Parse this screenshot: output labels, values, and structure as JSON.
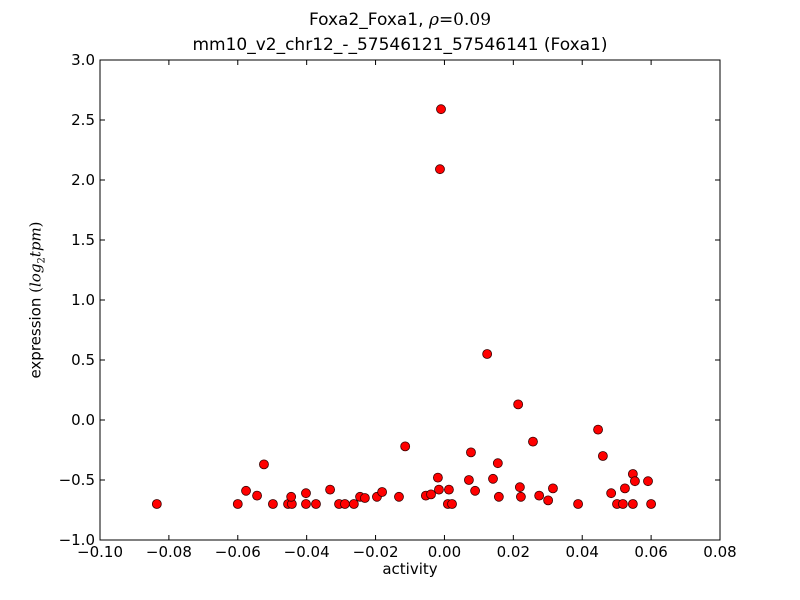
{
  "chart_data": {
    "type": "scatter",
    "title": "Foxa2_Foxa1, ρ = 0.09",
    "title_line1_text": "Foxa2_Foxa1, ",
    "title_rho_symbol": "ρ",
    "title_rho_value": "=0.09",
    "subtitle": "mm10_v2_chr12_-_57546121_57546141 (Foxa1)",
    "xlabel": "activity",
    "ylabel": "expression (log2 tpm)",
    "ylabel_text": "expression ",
    "ylabel_math_open": "(",
    "ylabel_math_log": "log",
    "ylabel_math_sub": "2",
    "ylabel_math_tpm": "tpm",
    "ylabel_math_close": ")",
    "xlim": [
      -0.1,
      0.08
    ],
    "ylim": [
      -1.0,
      3.0
    ],
    "xticks": [
      -0.1,
      -0.08,
      -0.06,
      -0.04,
      -0.02,
      0.0,
      0.02,
      0.04,
      0.06,
      0.08
    ],
    "xtick_labels": [
      "−0.10",
      "−0.08",
      "−0.06",
      "−0.04",
      "−0.02",
      "0.00",
      "0.02",
      "0.04",
      "0.06",
      "0.08"
    ],
    "yticks": [
      -1.0,
      -0.5,
      0.0,
      0.5,
      1.0,
      1.5,
      2.0,
      2.5,
      3.0
    ],
    "ytick_labels": [
      "−1.0",
      "−0.5",
      "0.0",
      "0.5",
      "1.0",
      "1.5",
      "2.0",
      "2.5",
      "3.0"
    ],
    "grid": false,
    "legend": null,
    "marker_color": "#ff0000",
    "marker_edge_color": "#3a0000",
    "points": [
      {
        "x": -0.0835,
        "y": -0.7
      },
      {
        "x": -0.06,
        "y": -0.7
      },
      {
        "x": -0.0576,
        "y": -0.59
      },
      {
        "x": -0.0544,
        "y": -0.63
      },
      {
        "x": -0.0524,
        "y": -0.37
      },
      {
        "x": -0.0498,
        "y": -0.7
      },
      {
        "x": -0.0454,
        "y": -0.7
      },
      {
        "x": -0.0443,
        "y": -0.7
      },
      {
        "x": -0.0445,
        "y": -0.64
      },
      {
        "x": -0.0402,
        "y": -0.61
      },
      {
        "x": -0.0402,
        "y": -0.7
      },
      {
        "x": -0.0373,
        "y": -0.7
      },
      {
        "x": -0.0332,
        "y": -0.58
      },
      {
        "x": -0.0306,
        "y": -0.7
      },
      {
        "x": -0.0289,
        "y": -0.7
      },
      {
        "x": -0.0263,
        "y": -0.7
      },
      {
        "x": -0.0245,
        "y": -0.64
      },
      {
        "x": -0.0231,
        "y": -0.65
      },
      {
        "x": -0.0196,
        "y": -0.64
      },
      {
        "x": -0.0181,
        "y": -0.6
      },
      {
        "x": -0.0132,
        "y": -0.64
      },
      {
        "x": -0.0114,
        "y": -0.22
      },
      {
        "x": -0.0054,
        "y": -0.63
      },
      {
        "x": -0.0039,
        "y": -0.62
      },
      {
        "x": -0.0019,
        "y": -0.48
      },
      {
        "x": -0.0016,
        "y": -0.58
      },
      {
        "x": -0.001,
        "y": 2.59
      },
      {
        "x": -0.0013,
        "y": 2.09
      },
      {
        "x": 0.001,
        "y": -0.7
      },
      {
        "x": 0.0022,
        "y": -0.7
      },
      {
        "x": 0.0013,
        "y": -0.58
      },
      {
        "x": 0.0071,
        "y": -0.5
      },
      {
        "x": 0.0077,
        "y": -0.27
      },
      {
        "x": 0.0089,
        "y": -0.59
      },
      {
        "x": 0.0124,
        "y": 0.55
      },
      {
        "x": 0.0141,
        "y": -0.49
      },
      {
        "x": 0.0155,
        "y": -0.36
      },
      {
        "x": 0.0158,
        "y": -0.64
      },
      {
        "x": 0.0214,
        "y": 0.13
      },
      {
        "x": 0.0219,
        "y": -0.56
      },
      {
        "x": 0.0222,
        "y": -0.64
      },
      {
        "x": 0.0257,
        "y": -0.18
      },
      {
        "x": 0.0275,
        "y": -0.63
      },
      {
        "x": 0.0301,
        "y": -0.67
      },
      {
        "x": 0.0315,
        "y": -0.57
      },
      {
        "x": 0.0388,
        "y": -0.7
      },
      {
        "x": 0.0446,
        "y": -0.08
      },
      {
        "x": 0.046,
        "y": -0.3
      },
      {
        "x": 0.0484,
        "y": -0.61
      },
      {
        "x": 0.0501,
        "y": -0.7
      },
      {
        "x": 0.0518,
        "y": -0.7
      },
      {
        "x": 0.0524,
        "y": -0.57
      },
      {
        "x": 0.0547,
        "y": -0.7
      },
      {
        "x": 0.0547,
        "y": -0.45
      },
      {
        "x": 0.0553,
        "y": -0.51
      },
      {
        "x": 0.0591,
        "y": -0.51
      },
      {
        "x": 0.06,
        "y": -0.7
      }
    ]
  }
}
